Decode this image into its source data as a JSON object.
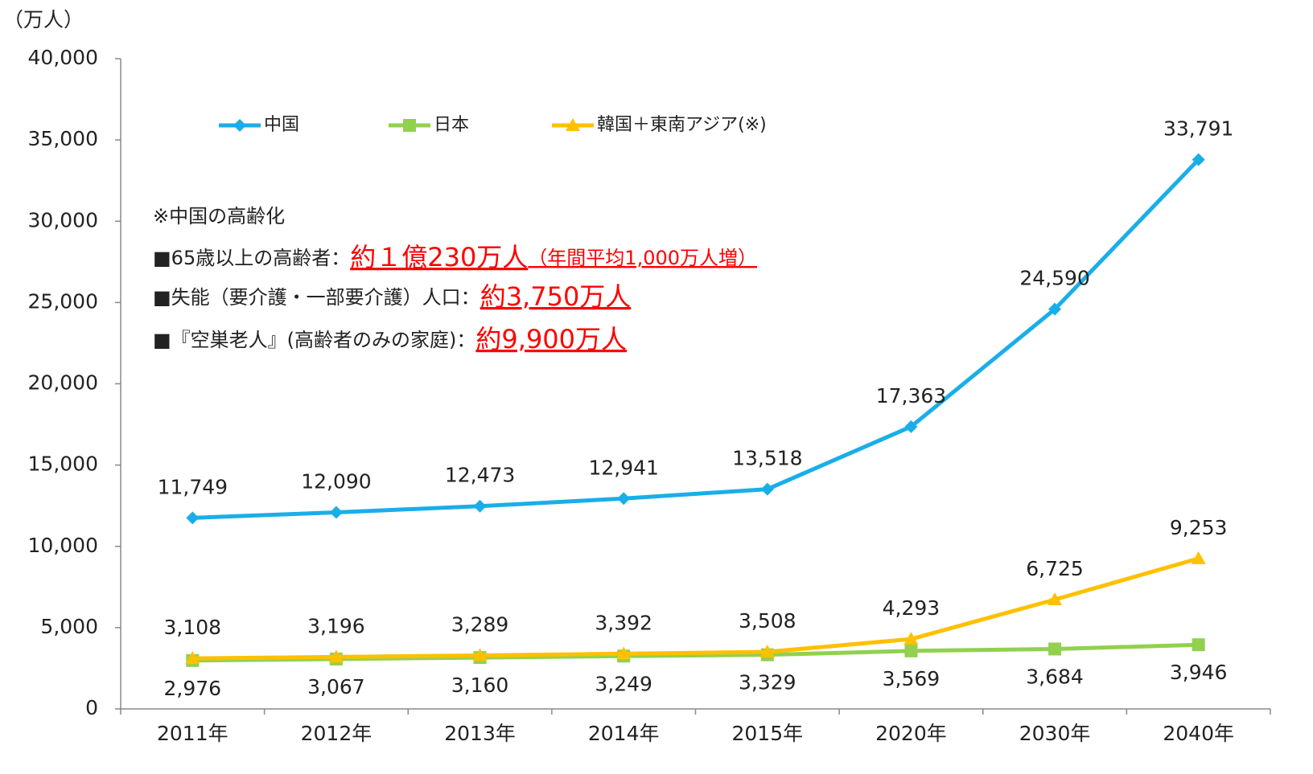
{
  "chart_data": {
    "type": "line",
    "unit_label": "（万人）",
    "categories": [
      "2011年",
      "2012年",
      "2013年",
      "2014年",
      "2015年",
      "2020年",
      "2030年",
      "2040年"
    ],
    "series": [
      {
        "name": "中国",
        "color": "#1aaee8",
        "marker": "diamond",
        "values": [
          11749,
          12090,
          12473,
          12941,
          13518,
          17363,
          24590,
          33791
        ],
        "value_labels": [
          "11,749",
          "12,090",
          "12,473",
          "12,941",
          "13,518",
          "17,363",
          "24,590",
          "33,791"
        ]
      },
      {
        "name": "日本",
        "color": "#92d050",
        "marker": "square",
        "values": [
          2976,
          3067,
          3160,
          3249,
          3329,
          3569,
          3684,
          3946
        ],
        "value_labels": [
          "2,976",
          "3,067",
          "3,160",
          "3,249",
          "3,329",
          "3,569",
          "3,684",
          "3,946"
        ]
      },
      {
        "name": "韓国＋東南アジア(※)",
        "color": "#ffc000",
        "marker": "triangle",
        "values": [
          3108,
          3196,
          3289,
          3392,
          3508,
          4293,
          6725,
          9253
        ],
        "value_labels": [
          "3,108",
          "3,196",
          "3,289",
          "3,392",
          "3,508",
          "4,293",
          "6,725",
          "9,253"
        ]
      }
    ],
    "ylim": [
      0,
      40000
    ],
    "yticks": [
      0,
      {
        "value": 5000,
        "label": "5,000"
      },
      {
        "value": 10000,
        "label": "10,000"
      },
      {
        "value": 15000,
        "label": "15,000"
      },
      {
        "value": 20000,
        "label": "20,000"
      },
      {
        "value": 25000,
        "label": "25,000"
      },
      {
        "value": 30000,
        "label": "30,000"
      },
      {
        "value": 35000,
        "label": "35,000"
      },
      {
        "value": 40000,
        "label": "40,000"
      }
    ],
    "legend": "top",
    "annotations": [
      {
        "text": "※中国の高齢化"
      },
      {
        "text": "■65歳以上の高齢者：",
        "highlight": "約１億230万人",
        "note": "（年間平均1,000万人増）"
      },
      {
        "text": "■失能（要介護・一部要介護）人口：",
        "highlight": "約3,750万人"
      },
      {
        "text": "■『空巣老人』(高齢者のみの家庭)：",
        "highlight": "約9,900万人"
      }
    ]
  }
}
